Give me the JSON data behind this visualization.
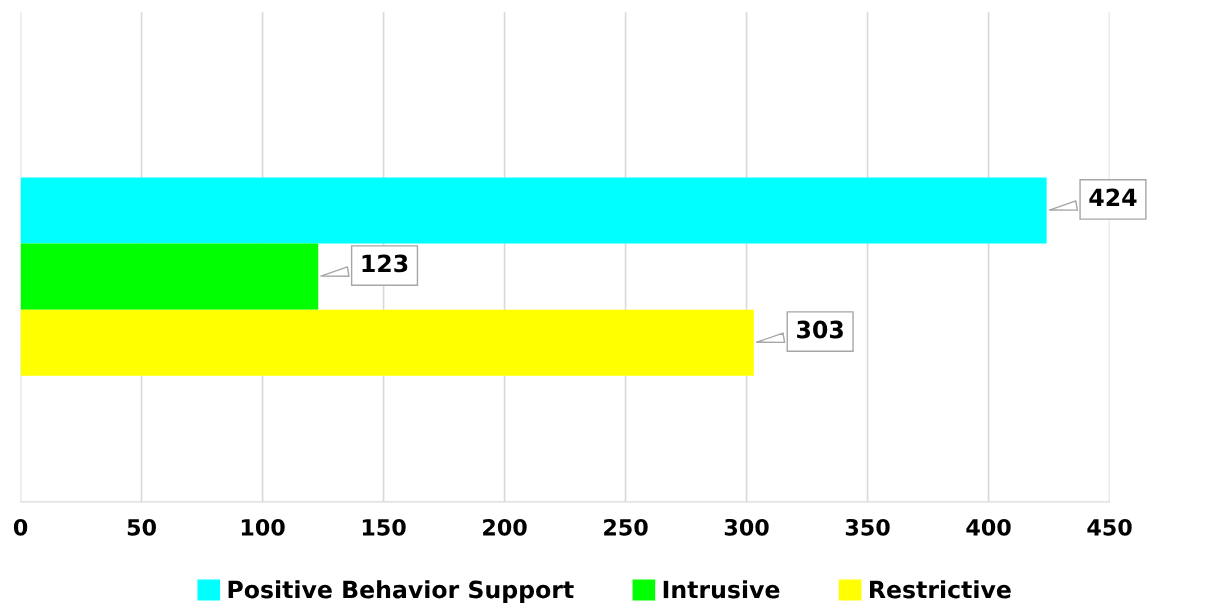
{
  "chart_data": {
    "type": "bar",
    "orientation": "horizontal",
    "categories": [
      null
    ],
    "series": [
      {
        "name": "Positive Behavior Support",
        "color": "#00ffff",
        "values": [
          424
        ]
      },
      {
        "name": "Intrusive",
        "color": "#00ff00",
        "values": [
          123
        ]
      },
      {
        "name": "Restrictive",
        "color": "#ffff00",
        "values": [
          303
        ]
      }
    ],
    "xlim": [
      0,
      450
    ],
    "xticks": [
      0,
      50,
      100,
      150,
      200,
      250,
      300,
      350,
      400,
      450
    ],
    "grid": "x",
    "legend": "bottom",
    "data_labels": true,
    "tick_labels": "x"
  }
}
